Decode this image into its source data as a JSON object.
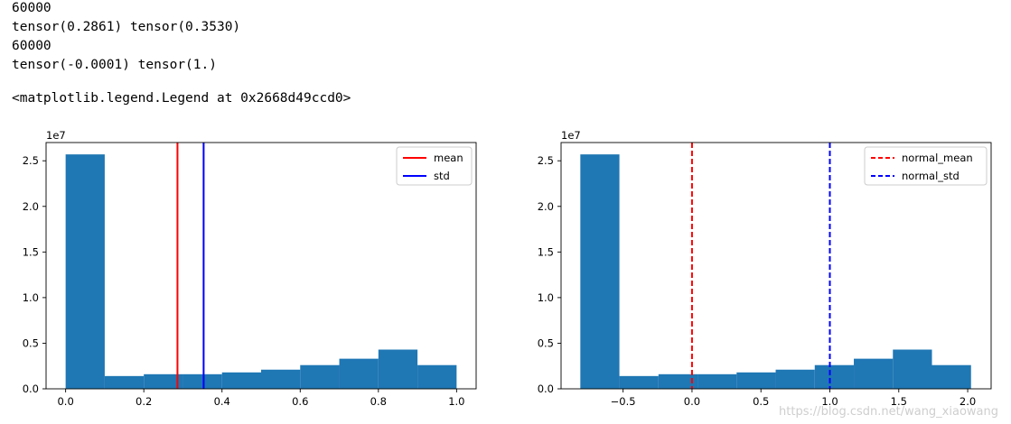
{
  "output": {
    "lines": [
      "60000",
      "tensor(0.2861) tensor(0.3530)",
      "60000",
      "tensor(-0.0001) tensor(1.)"
    ],
    "return_value": "<matplotlib.legend.Legend at 0x2668d49ccd0>"
  },
  "watermark": "https://blog.csdn.net/wang_xiaowang",
  "chart_data": [
    {
      "type": "bar",
      "subtype": "histogram",
      "color": "#1f77b4",
      "scale_label": "1e7",
      "bin_edges": [
        0.0,
        0.1,
        0.2,
        0.3,
        0.4,
        0.5,
        0.6,
        0.7,
        0.8,
        0.9,
        1.0
      ],
      "values": [
        2.57,
        0.14,
        0.16,
        0.16,
        0.18,
        0.21,
        0.26,
        0.33,
        0.43,
        0.26
      ],
      "xlim": [
        -0.05,
        1.05
      ],
      "ylim": [
        0,
        2.7
      ],
      "xticks": [
        0.0,
        0.2,
        0.4,
        0.6,
        0.8,
        1.0
      ],
      "xtick_labels": [
        "0.0",
        "0.2",
        "0.4",
        "0.6",
        "0.8",
        "1.0"
      ],
      "yticks": [
        0.0,
        0.5,
        1.0,
        1.5,
        2.0,
        2.5
      ],
      "ytick_labels": [
        "0.0",
        "0.5",
        "1.0",
        "1.5",
        "2.0",
        "2.5"
      ],
      "vlines": [
        {
          "name": "mean",
          "x": 0.2861,
          "color": "#ff0000",
          "style": "solid"
        },
        {
          "name": "std",
          "x": 0.353,
          "color": "#0000ff",
          "style": "solid"
        }
      ],
      "legend_position": "top-right"
    },
    {
      "type": "bar",
      "subtype": "histogram",
      "color": "#1f77b4",
      "scale_label": "1e7",
      "bin_edges": [
        -0.8102,
        -0.5267,
        -0.2433,
        0.0401,
        0.3236,
        0.607,
        0.8904,
        1.1739,
        1.4573,
        1.7407,
        2.0242
      ],
      "values": [
        2.57,
        0.14,
        0.16,
        0.16,
        0.18,
        0.21,
        0.26,
        0.33,
        0.43,
        0.26
      ],
      "xlim": [
        -0.95,
        2.17
      ],
      "ylim": [
        0,
        2.7
      ],
      "xticks": [
        -0.5,
        0.0,
        0.5,
        1.0,
        1.5,
        2.0
      ],
      "xtick_labels": [
        "−0.5",
        "0.0",
        "0.5",
        "1.0",
        "1.5",
        "2.0"
      ],
      "yticks": [
        0.0,
        0.5,
        1.0,
        1.5,
        2.0,
        2.5
      ],
      "ytick_labels": [
        "0.0",
        "0.5",
        "1.0",
        "1.5",
        "2.0",
        "2.5"
      ],
      "vlines": [
        {
          "name": "normal_mean",
          "x": -0.0001,
          "color": "#ff0000",
          "style": "dashed"
        },
        {
          "name": "normal_std",
          "x": 1.0,
          "color": "#0000ff",
          "style": "dashed"
        }
      ],
      "legend_position": "top-right"
    }
  ]
}
